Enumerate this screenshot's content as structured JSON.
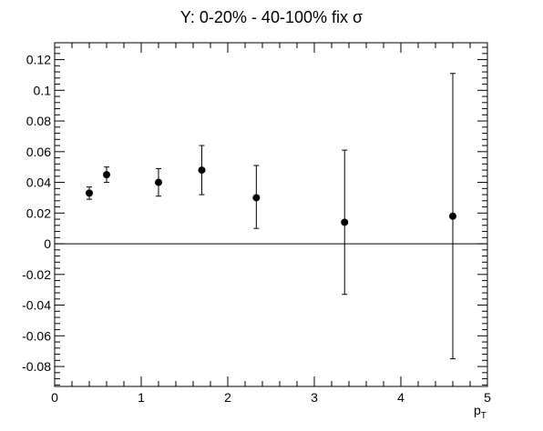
{
  "chart_data": {
    "type": "scatter",
    "title": "Y: 0-20% - 40-100% fix σ",
    "xlabel": "p",
    "xlabel_sub": "T",
    "ylabel": "",
    "xlim": [
      0,
      5
    ],
    "ylim": [
      -0.093,
      0.131
    ],
    "x_ticks": [
      0,
      1,
      2,
      3,
      4,
      5
    ],
    "x_tick_labels": [
      "0",
      "1",
      "2",
      "3",
      "4",
      "5"
    ],
    "y_ticks": [
      -0.08,
      -0.06,
      -0.04,
      -0.02,
      0,
      0.02,
      0.04,
      0.06,
      0.08,
      0.1,
      0.12
    ],
    "y_tick_labels": [
      "-0.08",
      "-0.06",
      "-0.04",
      "-0.02",
      "0",
      "0.02",
      "0.04",
      "0.06",
      "0.08",
      "0.1",
      "0.12"
    ],
    "zero_line": 0,
    "grid": false,
    "series": [
      {
        "x": [
          0.4,
          0.6,
          1.2,
          1.7,
          2.33,
          3.35,
          4.6
        ],
        "y": [
          0.033,
          0.045,
          0.04,
          0.048,
          0.03,
          0.014,
          0.018
        ],
        "y_low": [
          0.029,
          0.04,
          0.031,
          0.032,
          0.01,
          -0.033,
          -0.075
        ],
        "y_high": [
          0.037,
          0.05,
          0.049,
          0.064,
          0.051,
          0.061,
          0.111
        ]
      }
    ],
    "colors": {
      "marker": "#000000",
      "axis": "#000000",
      "background": "#ffffff"
    }
  }
}
